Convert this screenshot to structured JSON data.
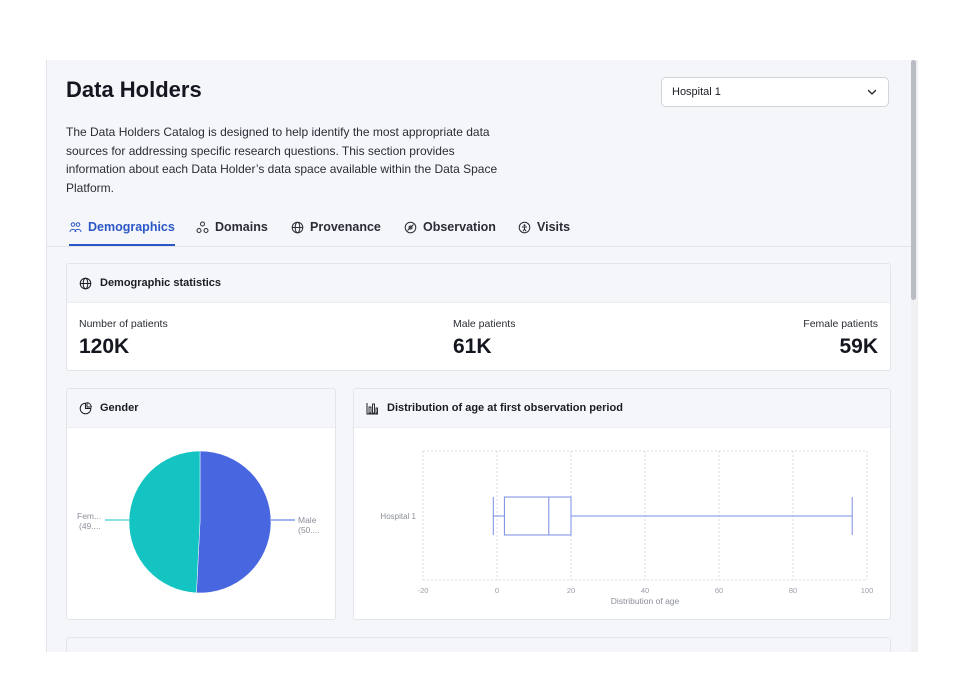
{
  "header": {
    "title": "Data Holders",
    "description": "The Data Holders Catalog is designed to help identify the most appropriate data sources for addressing specific research questions. This section provides information about each Data Holder’s data space available within the Data Space Platform."
  },
  "holder_select": {
    "value": "Hospital 1",
    "icon": "chevron-down-icon"
  },
  "tabs": [
    {
      "label": "Demographics",
      "icon": "demographics-icon",
      "active": true
    },
    {
      "label": "Domains",
      "icon": "domains-icon",
      "active": false
    },
    {
      "label": "Provenance",
      "icon": "globe-icon",
      "active": false
    },
    {
      "label": "Observation",
      "icon": "observation-icon",
      "active": false
    },
    {
      "label": "Visits",
      "icon": "person-icon",
      "active": false
    }
  ],
  "demographic_stats": {
    "title": "Demographic statistics",
    "icon": "globe-icon",
    "items": [
      {
        "label": "Number of patients",
        "value": "120K"
      },
      {
        "label": "Male patients",
        "value": "61K"
      },
      {
        "label": "Female patients",
        "value": "59K"
      }
    ]
  },
  "gender_card": {
    "title": "Gender",
    "icon": "pie-chart-icon",
    "male_label": [
      "Male",
      "(50...."
    ],
    "female_label": [
      "Fem...",
      "(49...."
    ]
  },
  "age_card": {
    "title": "Distribution of age at first observation period",
    "icon": "bar-chart-icon"
  },
  "colors": {
    "accent": "#2a56c6",
    "male": "#4766e0",
    "female": "#13c4c2",
    "box": "#7b8ce6"
  },
  "chart_data": [
    {
      "type": "pie",
      "categories": [
        "Male",
        "Female"
      ],
      "values": [
        50.8,
        49.2
      ],
      "colors": [
        "#4766e0",
        "#13c4c2"
      ],
      "title": "Gender"
    },
    {
      "type": "box",
      "title": "Distribution of age at first observation period",
      "categories": [
        "Hospital 1"
      ],
      "box": {
        "min": -1,
        "q1": 2,
        "median": 14,
        "q3": 20,
        "max": 96
      },
      "xlabel": "Distribution of age",
      "xlim": [
        -20,
        100
      ],
      "xticks": [
        -20,
        0,
        20,
        40,
        60,
        80,
        100
      ],
      "grid": true
    }
  ]
}
